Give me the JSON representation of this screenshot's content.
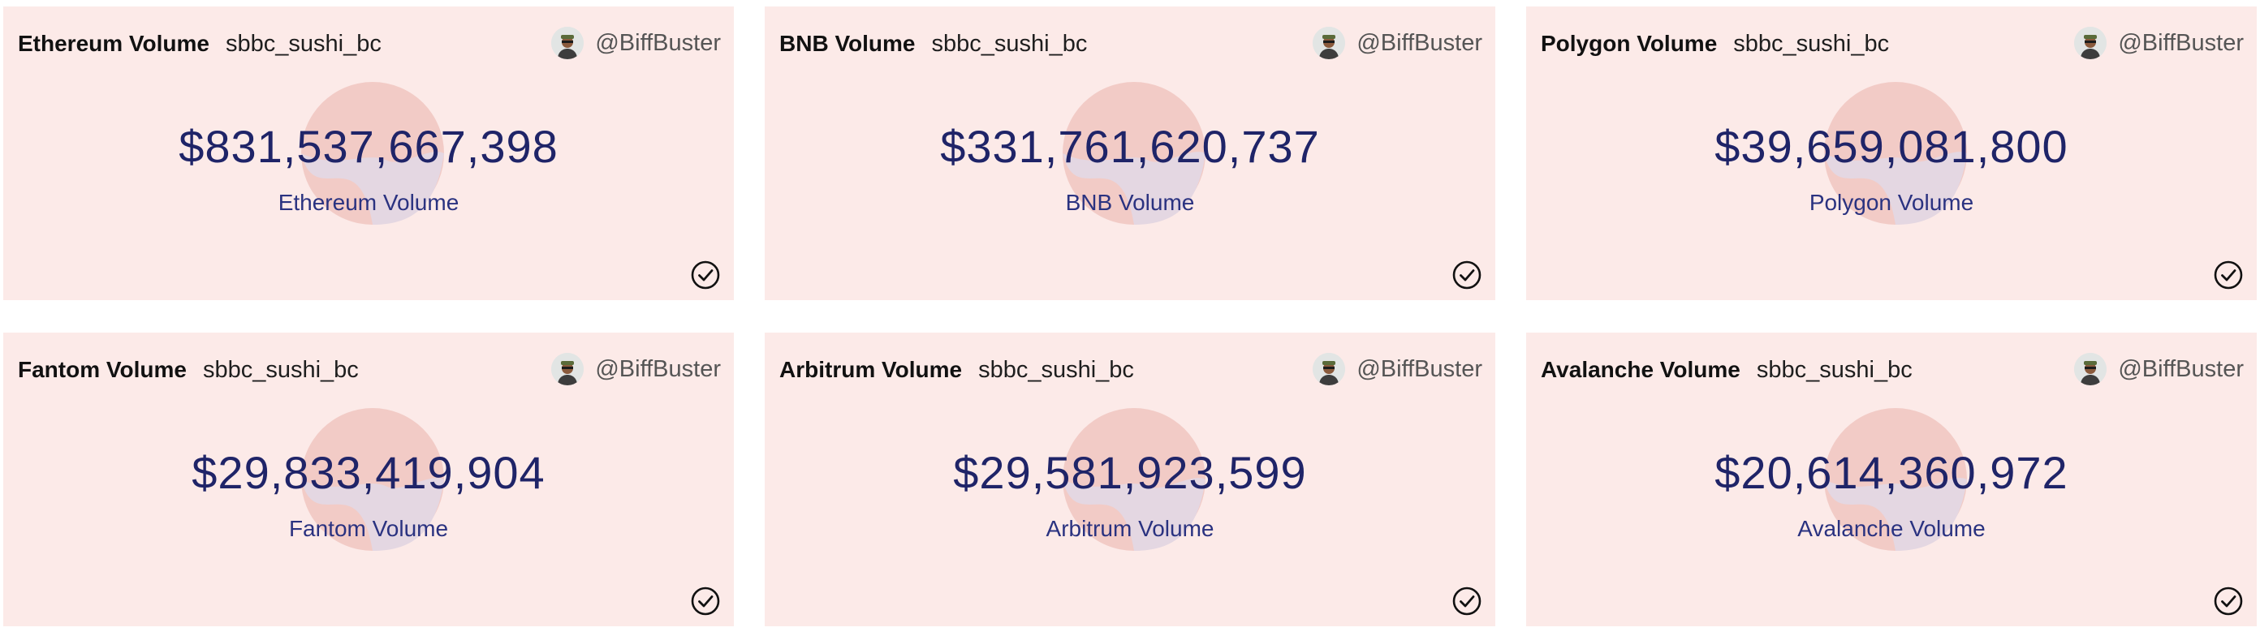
{
  "cards": [
    {
      "title": "Ethereum Volume",
      "author": "sbbc_sushi_bc",
      "user": "@BiffBuster",
      "value": "$831,537,667,398",
      "label": "Ethereum Volume"
    },
    {
      "title": "BNB Volume",
      "author": "sbbc_sushi_bc",
      "user": "@BiffBuster",
      "value": "$331,761,620,737",
      "label": "BNB Volume"
    },
    {
      "title": "Polygon Volume",
      "author": "sbbc_sushi_bc",
      "user": "@BiffBuster",
      "value": "$39,659,081,800",
      "label": "Polygon Volume"
    },
    {
      "title": "Fantom Volume",
      "author": "sbbc_sushi_bc",
      "user": "@BiffBuster",
      "value": "$29,833,419,904",
      "label": "Fantom Volume"
    },
    {
      "title": "Arbitrum Volume",
      "author": "sbbc_sushi_bc",
      "user": "@BiffBuster",
      "value": "$29,581,923,599",
      "label": "Arbitrum Volume"
    },
    {
      "title": "Avalanche Volume",
      "author": "sbbc_sushi_bc",
      "user": "@BiffBuster",
      "value": "$20,614,360,972",
      "label": "Avalanche Volume"
    }
  ],
  "icons": {
    "avatar": "avatar-icon",
    "status": "checkmark-circle-icon",
    "decor": "sushi-logo-icon"
  },
  "colors": {
    "card_background": "#fceae8",
    "value_text": "#1f2468",
    "decor_top": "#f2cbc6",
    "decor_bottom": "#e4d7e2"
  }
}
